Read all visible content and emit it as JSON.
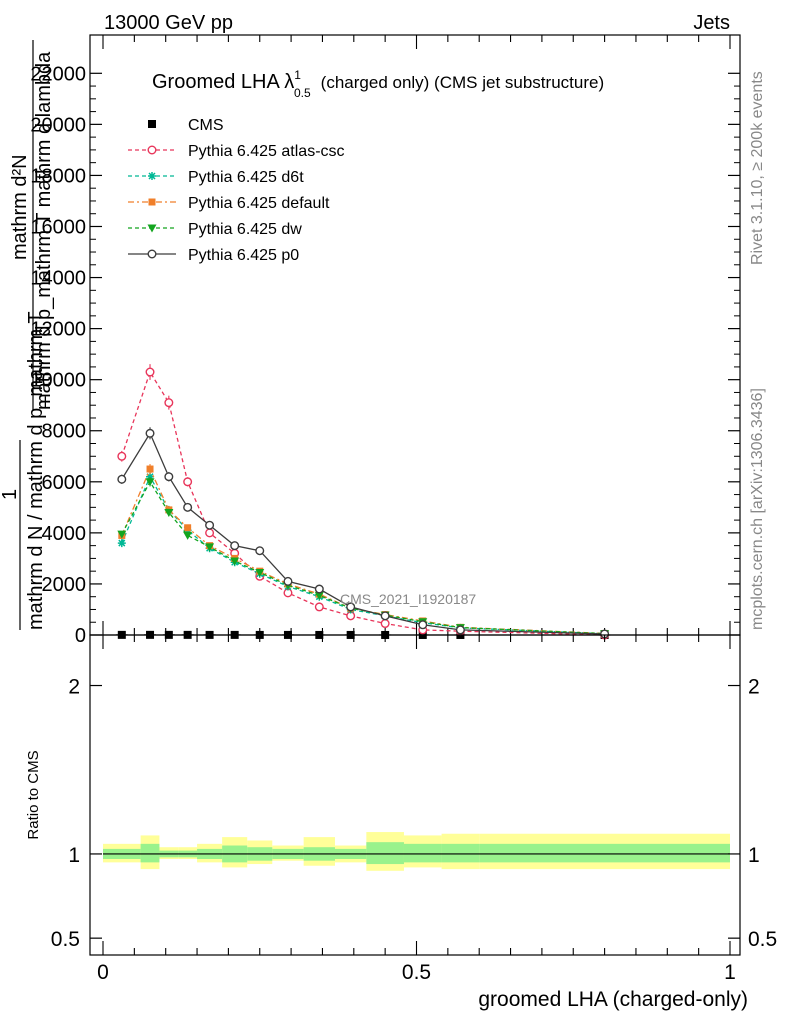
{
  "header": {
    "energy": "13000 GeV pp",
    "category": "Jets",
    "analysis_id": "CMS_2021_I1920187",
    "side_top": "Rivet 3.1.10, ≥ 200k events",
    "side_bottom": "mcplots.cern.ch [arXiv:1306.3436]"
  },
  "chart_data": [
    {
      "type": "line",
      "title_main": "Groomed LHA λ",
      "title_sup": "1",
      "title_sub": "0.5",
      "title_rest": "(charged only) (CMS jet substructure)",
      "ylabel_parts": [
        "mathrm d²N",
        "mathrm d p_mathrm T mathrm d lambda",
        "1",
        "mathrm d N / mathrm d p_mathrm T"
      ],
      "xlim": [
        0,
        1
      ],
      "ylim": [
        0,
        23500
      ],
      "y_ticks": [
        0,
        2000,
        4000,
        6000,
        8000,
        10000,
        12000,
        14000,
        16000,
        18000,
        20000,
        22000
      ],
      "y_tick_labels": [
        "0",
        "2000",
        "4000",
        "6000",
        "8000",
        "10000",
        "12000",
        "14000",
        "16000",
        "18000",
        "20000",
        "22000"
      ],
      "legend_position": "top-left",
      "x": [
        0.03,
        0.075,
        0.105,
        0.135,
        0.17,
        0.21,
        0.25,
        0.295,
        0.345,
        0.395,
        0.45,
        0.51,
        0.57,
        0.8
      ],
      "series": [
        {
          "name": "CMS",
          "color": "#000000",
          "marker": "square",
          "values": [
            5,
            6,
            5,
            5,
            4,
            4,
            3,
            3,
            2,
            2,
            1,
            1,
            1,
            0
          ]
        },
        {
          "name": "Pythia 6.425 atlas-csc",
          "color": "#e8355a",
          "marker": "open-circle",
          "dash": "4,3",
          "values": [
            7000,
            10300,
            9100,
            6000,
            4000,
            3200,
            2300,
            1650,
            1100,
            750,
            450,
            200,
            150,
            0
          ]
        },
        {
          "name": "Pythia 6.425 d6t",
          "color": "#00b895",
          "marker": "star",
          "dash": "4,3",
          "values": [
            3600,
            6200,
            4900,
            4100,
            3400,
            2850,
            2400,
            1900,
            1500,
            1000,
            750,
            480,
            280,
            50
          ]
        },
        {
          "name": "Pythia 6.425 default",
          "color": "#f07f2a",
          "marker": "filled-square",
          "dash": "6,3,2,3",
          "values": [
            3900,
            6500,
            4900,
            4200,
            3500,
            3000,
            2500,
            2000,
            1600,
            1050,
            800,
            550,
            300,
            60
          ]
        },
        {
          "name": "Pythia 6.425 dw",
          "color": "#13a51f",
          "marker": "triangle-down",
          "dash": "4,3",
          "values": [
            3950,
            6000,
            4800,
            3900,
            3450,
            2900,
            2450,
            1950,
            1550,
            1050,
            780,
            520,
            290,
            55
          ]
        },
        {
          "name": "Pythia 6.425 p0",
          "color": "#3c3c3c",
          "marker": "open-circle",
          "dash": "",
          "values": [
            6100,
            7900,
            6200,
            5000,
            4300,
            3500,
            3300,
            2100,
            1800,
            1100,
            750,
            400,
            200,
            40
          ]
        }
      ]
    },
    {
      "type": "area",
      "ylabel": "Ratio to CMS",
      "xlabel": "groomed LHA (charged-only)",
      "xlim": [
        0,
        1
      ],
      "ylim": [
        0.4,
        2.3
      ],
      "y_tick_labels": [
        "0.5",
        "1",
        "2"
      ],
      "x_tick_labels": [
        "0",
        "0.5",
        "1"
      ],
      "bin_edges": [
        0,
        0.06,
        0.09,
        0.12,
        0.15,
        0.19,
        0.23,
        0.27,
        0.32,
        0.37,
        0.42,
        0.48,
        0.54,
        0.6,
        1.0
      ],
      "band_inner_low": [
        0.97,
        0.95,
        0.98,
        0.98,
        0.97,
        0.95,
        0.96,
        0.97,
        0.96,
        0.97,
        0.94,
        0.95,
        0.95,
        0.95
      ],
      "band_inner_high": [
        1.03,
        1.06,
        1.02,
        1.02,
        1.03,
        1.05,
        1.04,
        1.03,
        1.04,
        1.03,
        1.07,
        1.06,
        1.06,
        1.06
      ],
      "band_outer_low": [
        0.95,
        0.91,
        0.97,
        0.97,
        0.95,
        0.92,
        0.94,
        0.96,
        0.93,
        0.95,
        0.9,
        0.92,
        0.91,
        0.91
      ],
      "band_outer_high": [
        1.06,
        1.11,
        1.04,
        1.04,
        1.06,
        1.1,
        1.08,
        1.05,
        1.1,
        1.05,
        1.13,
        1.11,
        1.12,
        1.12
      ],
      "colors": {
        "inner": "#99f28c",
        "outer": "#ffff99"
      }
    }
  ]
}
